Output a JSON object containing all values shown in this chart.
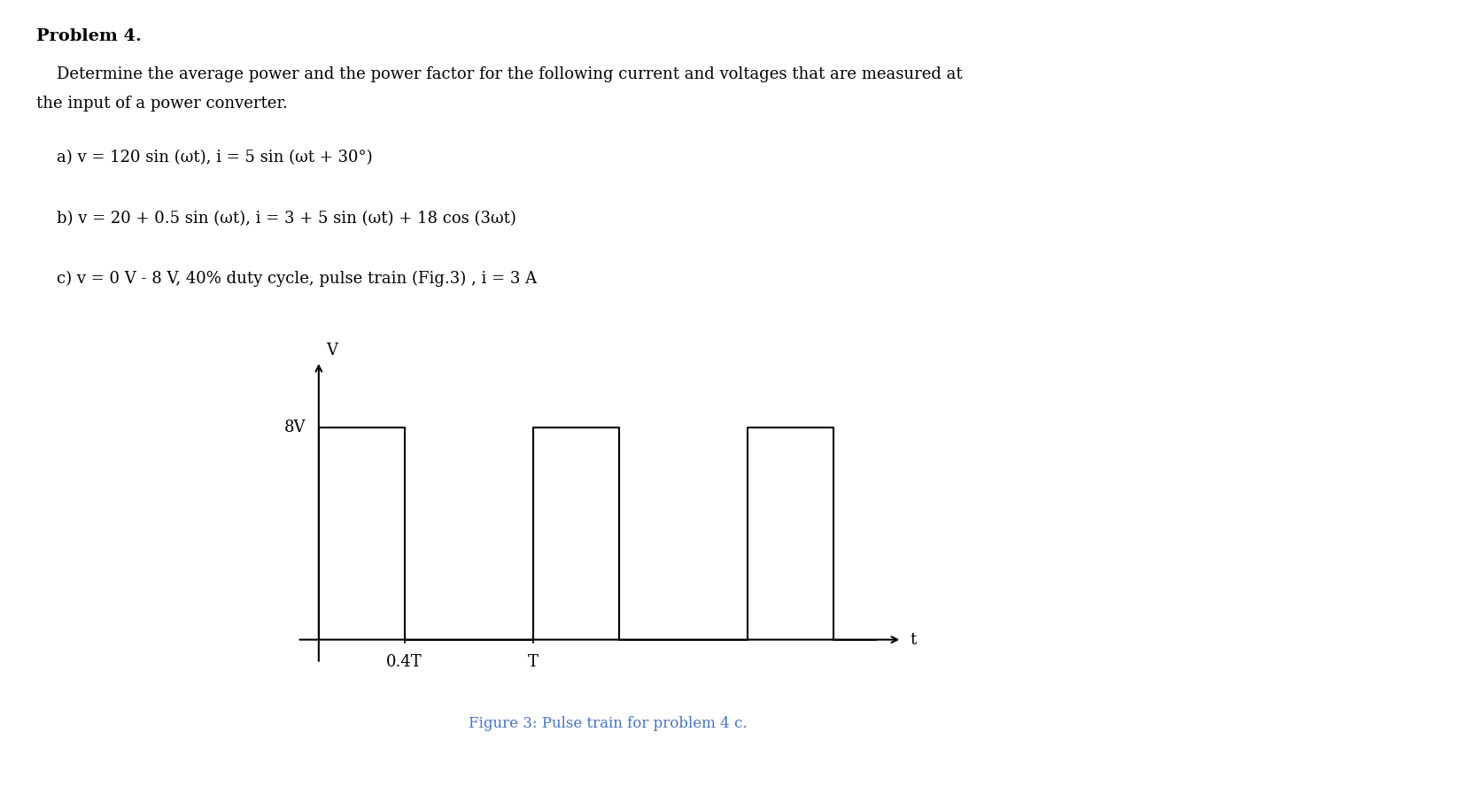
{
  "background_color": "#ffffff",
  "text_color": "#000000",
  "problem_title": "Problem 4.",
  "intro_line1": "    Determine the average power and the power factor for the following current and voltages that are measured at",
  "intro_line2": "the input of a power converter.",
  "part_a": "    a) v = 120 sin (ωt), i = 5 sin (ωt + 30°)",
  "part_b": "    b) v = 20 + 0.5 sin (ωt), i = 3 + 5 sin (ωt) + 18 cos (3ωt)",
  "part_c": "    c) v = 0 V - 8 V, 40% duty cycle, pulse train (Fig.3) , i = 3 A",
  "fig_caption": "Figure 3: Pulse train for problem 4 c.",
  "fig_caption_color": "#4472c4",
  "pulse_color": "#000000",
  "axis_color": "#000000",
  "label_color": "#000000",
  "duty_cycle": 0.4,
  "pulse_amplitude": 8,
  "xlabel": "t",
  "ylabel": "V",
  "y_label_8V": "8V",
  "x_label_04T": "0.4T",
  "x_label_T": "T",
  "title_fontsize": 14,
  "body_fontsize": 13,
  "caption_fontsize": 12
}
